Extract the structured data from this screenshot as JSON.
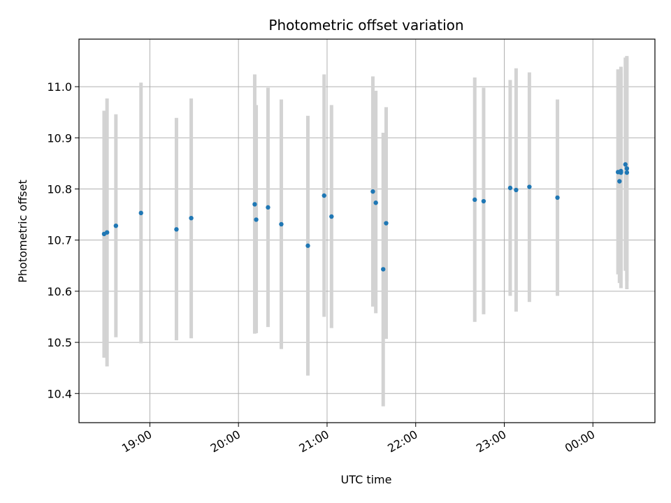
{
  "chart_data": {
    "type": "scatter",
    "title": "Photometric offset variation",
    "xlabel": "UTC time",
    "ylabel": "Photometric offset",
    "xlim": [
      "18:12",
      "00:42"
    ],
    "ylim": [
      10.343,
      11.093
    ],
    "x_ticks": [
      "19:00",
      "20:00",
      "21:00",
      "22:00",
      "23:00",
      "00:00"
    ],
    "y_ticks": [
      10.4,
      10.5,
      10.6,
      10.7,
      10.8,
      10.9,
      11.0
    ],
    "y_tick_labels": [
      "10.4",
      "10.5",
      "10.6",
      "10.7",
      "10.8",
      "10.9",
      "11.0"
    ],
    "grid": true,
    "error_bar_color": "#d3d3d3",
    "point_color": "#1f77b4",
    "points": [
      {
        "x": "18:29",
        "y": 10.712,
        "ylow": 10.47,
        "yhigh": 10.953
      },
      {
        "x": "18:31",
        "y": 10.715,
        "ylow": 10.453,
        "yhigh": 10.977
      },
      {
        "x": "18:37",
        "y": 10.728,
        "ylow": 10.51,
        "yhigh": 10.946
      },
      {
        "x": "18:54",
        "y": 10.753,
        "ylow": 10.498,
        "yhigh": 11.008
      },
      {
        "x": "19:18",
        "y": 10.721,
        "ylow": 10.504,
        "yhigh": 10.939
      },
      {
        "x": "19:28",
        "y": 10.743,
        "ylow": 10.508,
        "yhigh": 10.977
      },
      {
        "x": "20:11",
        "y": 10.77,
        "ylow": 10.517,
        "yhigh": 11.024
      },
      {
        "x": "20:12",
        "y": 10.74,
        "ylow": 10.518,
        "yhigh": 10.964
      },
      {
        "x": "20:20",
        "y": 10.764,
        "ylow": 10.53,
        "yhigh": 10.998
      },
      {
        "x": "20:29",
        "y": 10.731,
        "ylow": 10.487,
        "yhigh": 10.975
      },
      {
        "x": "20:47",
        "y": 10.689,
        "ylow": 10.435,
        "yhigh": 10.943
      },
      {
        "x": "20:58",
        "y": 10.787,
        "ylow": 10.55,
        "yhigh": 11.024
      },
      {
        "x": "21:03",
        "y": 10.746,
        "ylow": 10.528,
        "yhigh": 10.964
      },
      {
        "x": "21:31",
        "y": 10.795,
        "ylow": 10.57,
        "yhigh": 11.02
      },
      {
        "x": "21:33",
        "y": 10.773,
        "ylow": 10.557,
        "yhigh": 10.992
      },
      {
        "x": "21:38",
        "y": 10.643,
        "ylow": 10.375,
        "yhigh": 10.91
      },
      {
        "x": "21:40",
        "y": 10.733,
        "ylow": 10.507,
        "yhigh": 10.96
      },
      {
        "x": "22:40",
        "y": 10.779,
        "ylow": 10.54,
        "yhigh": 11.018
      },
      {
        "x": "22:46",
        "y": 10.776,
        "ylow": 10.555,
        "yhigh": 10.998
      },
      {
        "x": "23:04",
        "y": 10.802,
        "ylow": 10.591,
        "yhigh": 11.013
      },
      {
        "x": "23:08",
        "y": 10.798,
        "ylow": 10.56,
        "yhigh": 11.036
      },
      {
        "x": "23:17",
        "y": 10.804,
        "ylow": 10.579,
        "yhigh": 11.028
      },
      {
        "x": "23:36",
        "y": 10.783,
        "ylow": 10.591,
        "yhigh": 10.975
      },
      {
        "x": "00:17",
        "y": 10.833,
        "ylow": 10.633,
        "yhigh": 11.034
      },
      {
        "x": "00:18",
        "y": 10.815,
        "ylow": 10.616,
        "yhigh": 11.032
      },
      {
        "x": "00:19",
        "y": 10.835,
        "ylow": 10.606,
        "yhigh": 11.039
      },
      {
        "x": "00:19",
        "y": 10.832,
        "ylow": 10.64,
        "yhigh": 11.026
      },
      {
        "x": "00:22",
        "y": 10.848,
        "ylow": 10.64,
        "yhigh": 11.057
      },
      {
        "x": "00:23",
        "y": 10.84,
        "ylow": 10.62,
        "yhigh": 11.058
      },
      {
        "x": "00:23",
        "y": 10.832,
        "ylow": 10.604,
        "yhigh": 11.06
      }
    ]
  }
}
